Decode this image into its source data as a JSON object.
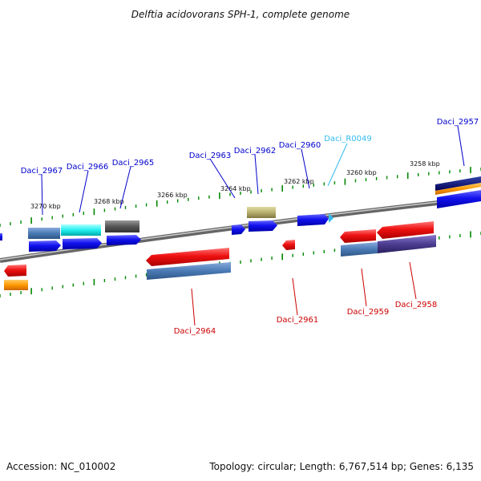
{
  "title": "Delftia acidovorans SPH-1, complete genome",
  "footer": {
    "accession": "Accession: NC_010002",
    "summary": "Topology: circular; Length: 6,767,514 bp; Genes: 6,135"
  },
  "colors": {
    "forward_label": "#0000cc",
    "reverse_label": "#cc0000",
    "rna_label": "#33bbee",
    "tick": "#008800",
    "backbone": "#888888"
  },
  "ticks": [
    {
      "label": "3270 kbp"
    },
    {
      "label": "3268 kbp"
    },
    {
      "label": "3266 kbp"
    },
    {
      "label": "3264 kbp"
    },
    {
      "label": "3262 kbp"
    },
    {
      "label": "3260 kbp"
    },
    {
      "label": "3258 kbp"
    }
  ],
  "genes": [
    {
      "id": "daci-2967",
      "label": "Daci_2967",
      "strand": "forward"
    },
    {
      "id": "daci-2966",
      "label": "Daci_2966",
      "strand": "forward"
    },
    {
      "id": "daci-2965",
      "label": "Daci_2965",
      "strand": "forward"
    },
    {
      "id": "daci-2963",
      "label": "Daci_2963",
      "strand": "forward"
    },
    {
      "id": "daci-2962",
      "label": "Daci_2962",
      "strand": "forward"
    },
    {
      "id": "daci-2960",
      "label": "Daci_2960",
      "strand": "forward"
    },
    {
      "id": "daci-r0049",
      "label": "Daci_R0049",
      "strand": "rna"
    },
    {
      "id": "daci-2957",
      "label": "Daci_2957",
      "strand": "forward"
    },
    {
      "id": "daci-2964",
      "label": "Daci_2964",
      "strand": "reverse"
    },
    {
      "id": "daci-2961",
      "label": "Daci_2961",
      "strand": "reverse"
    },
    {
      "id": "daci-2959",
      "label": "Daci_2959",
      "strand": "reverse"
    },
    {
      "id": "daci-2958",
      "label": "Daci_2958",
      "strand": "reverse"
    }
  ]
}
